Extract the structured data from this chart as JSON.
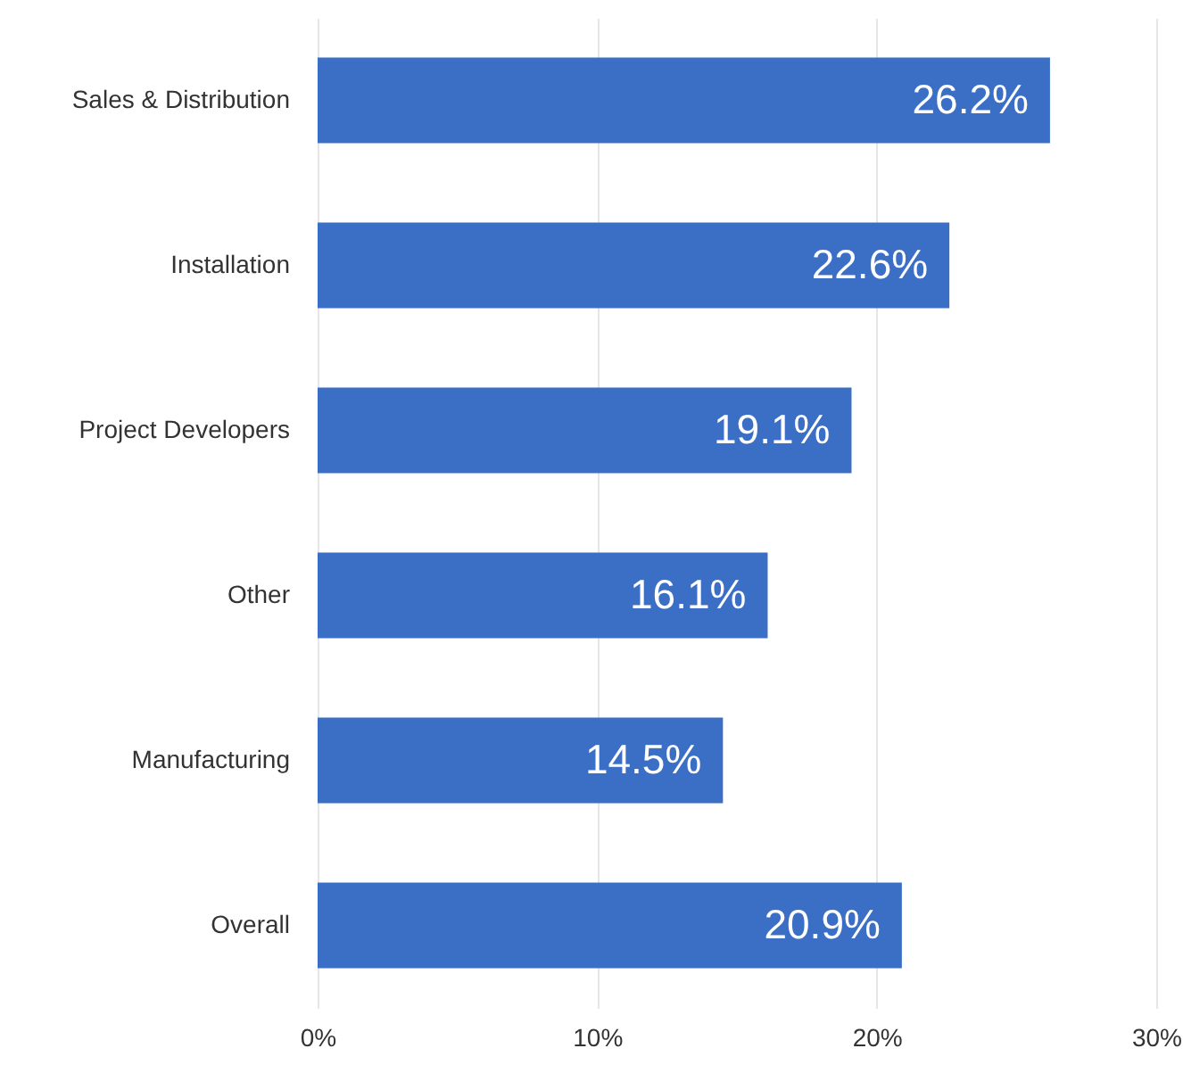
{
  "chart_data": {
    "type": "bar",
    "orientation": "horizontal",
    "categories": [
      "Sales & Distribution",
      "Installation",
      "Project Developers",
      "Other",
      "Manufacturing",
      "Overall"
    ],
    "values": [
      26.2,
      22.6,
      19.1,
      16.1,
      14.5,
      20.9
    ],
    "value_labels": [
      "26.2%",
      "22.6%",
      "19.1%",
      "16.1%",
      "14.5%",
      "20.9%"
    ],
    "color": "#3b6fc6",
    "xlim": [
      0,
      30
    ],
    "xticks": [
      {
        "value": 0,
        "label": "0%"
      },
      {
        "value": 10,
        "label": "10%"
      },
      {
        "value": 20,
        "label": "20%"
      },
      {
        "value": 30,
        "label": "30%"
      }
    ],
    "grid": "x"
  }
}
